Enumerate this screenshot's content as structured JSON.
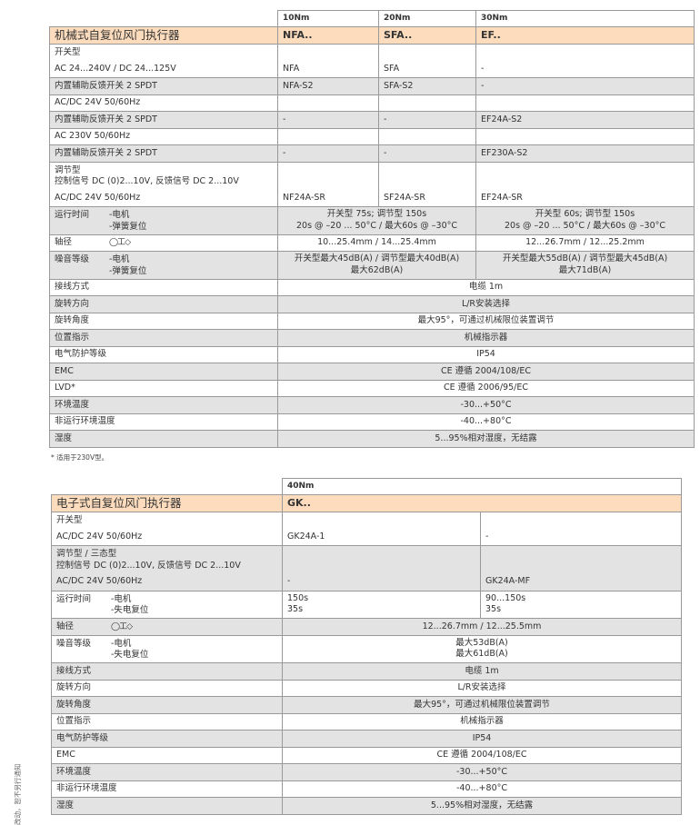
{
  "colors": {
    "header_band": "#fcdcbd",
    "stripe": "#e3e3e3",
    "border": "#999999"
  },
  "icons": {
    "shaft": "shaft-profile-icon (round / flat / square)"
  },
  "table1": {
    "title": "机械式自复位风门执行器",
    "torque": [
      "10Nm",
      "20Nm",
      "30Nm"
    ],
    "series": [
      "NFA..",
      "SFA..",
      "EF.."
    ],
    "rows": [
      {
        "label": "开关型",
        "cells": [
          {
            "t": ""
          },
          {
            "t": ""
          },
          {
            "t": ""
          }
        ],
        "bg": "w",
        "nb": true
      },
      {
        "label": "AC 24...240V / DC 24...125V",
        "cells": [
          {
            "t": "NFA"
          },
          {
            "t": "SFA"
          },
          {
            "t": "-"
          }
        ],
        "bg": "w"
      },
      {
        "label": "内置辅助反馈开关 2 SPDT",
        "cells": [
          {
            "t": "NFA-S2"
          },
          {
            "t": "SFA-S2"
          },
          {
            "t": "-"
          }
        ],
        "bg": "g"
      },
      {
        "label": "AC/DC 24V  50/60Hz",
        "cells": [
          {
            "t": ""
          },
          {
            "t": ""
          },
          {
            "t": ""
          }
        ],
        "bg": "w"
      },
      {
        "label": "内置辅助反馈开关 2 SPDT",
        "cells": [
          {
            "t": "-"
          },
          {
            "t": "-"
          },
          {
            "t": "EF24A-S2"
          }
        ],
        "bg": "g"
      },
      {
        "label": "AC 230V  50/60Hz",
        "cells": [
          {
            "t": ""
          },
          {
            "t": ""
          },
          {
            "t": ""
          }
        ],
        "bg": "w"
      },
      {
        "label": "内置辅助反馈开关 2 SPDT",
        "cells": [
          {
            "t": "-"
          },
          {
            "t": "-"
          },
          {
            "t": "EF230A-S2"
          }
        ],
        "bg": "g"
      },
      {
        "label": "调节型\n控制信号 DC (0)2...10V, 反馈信号 DC 2...10V",
        "cells": [
          {
            "t": ""
          },
          {
            "t": ""
          },
          {
            "t": ""
          }
        ],
        "bg": "w",
        "nb": true,
        "tall": true
      },
      {
        "label": "AC/DC 24V  50/60Hz",
        "cells": [
          {
            "t": "NF24A-SR"
          },
          {
            "t": "SF24A-SR"
          },
          {
            "t": "EF24A-SR"
          }
        ],
        "bg": "w"
      },
      {
        "label": "运行时间",
        "sub": "-电机\n-弹簧复位",
        "cells": [
          {
            "t": "开关型 75s; 调节型 150s\n20s @ –20 ... 50°C / 最大60s @ –30°C",
            "span": 2,
            "c": true
          },
          {
            "t": "开关型  60s; 调节型 150s\n20s @ –20 ... 50°C / 最大60s @ –30°C",
            "c": true
          }
        ],
        "bg": "g"
      },
      {
        "label": "轴径",
        "shaft": true,
        "cells": [
          {
            "t": "10...25.4mm / 14...25.4mm",
            "span": 2,
            "c": true
          },
          {
            "t": "12...26.7mm / 12...25.2mm",
            "c": true
          }
        ],
        "bg": "w"
      },
      {
        "label": "噪音等级",
        "sub": "-电机\n-弹簧复位",
        "cells": [
          {
            "t": "开关型最大45dB(A) / 调节型最大40dB(A)\n最大62dB(A)",
            "span": 2,
            "c": true
          },
          {
            "t": "开关型最大55dB(A) / 调节型最大45dB(A)\n最大71dB(A)",
            "c": true
          }
        ],
        "bg": "g"
      },
      {
        "label": "接线方式",
        "cells": [
          {
            "t": "电缆 1m",
            "span": 3,
            "c": true
          }
        ],
        "bg": "w"
      },
      {
        "label": "旋转方向",
        "cells": [
          {
            "t": "L/R安装选择",
            "span": 3,
            "c": true
          }
        ],
        "bg": "g"
      },
      {
        "label": "旋转角度",
        "cells": [
          {
            "t": "最大95°，可通过机械限位装置调节",
            "span": 3,
            "c": true
          }
        ],
        "bg": "w"
      },
      {
        "label": "位置指示",
        "cells": [
          {
            "t": "机械指示器",
            "span": 3,
            "c": true
          }
        ],
        "bg": "g"
      },
      {
        "label": "电气防护等级",
        "cells": [
          {
            "t": "IP54",
            "span": 3,
            "c": true
          }
        ],
        "bg": "w"
      },
      {
        "label": "EMC",
        "cells": [
          {
            "t": "CE 遵循 2004/108/EC",
            "span": 3,
            "c": true
          }
        ],
        "bg": "g"
      },
      {
        "label": "LVD*",
        "cells": [
          {
            "t": "CE 遵循 2006/95/EC",
            "span": 3,
            "c": true
          }
        ],
        "bg": "w"
      },
      {
        "label": "环境温度",
        "cells": [
          {
            "t": "-30...+50°C",
            "span": 3,
            "c": true
          }
        ],
        "bg": "g"
      },
      {
        "label": "非运行环境温度",
        "cells": [
          {
            "t": "-40...+80°C",
            "span": 3,
            "c": true
          }
        ],
        "bg": "w"
      },
      {
        "label": "湿度",
        "cells": [
          {
            "t": "5...95%相对湿度，无结露",
            "span": 3,
            "c": true
          }
        ],
        "bg": "g"
      }
    ],
    "footnote": "* 适用于230V型。"
  },
  "table2": {
    "title": "电子式自复位风门执行器",
    "torque": [
      "40Nm"
    ],
    "series": [
      "GK.."
    ],
    "rows": [
      {
        "label": "开关型",
        "cells": [
          {
            "t": ""
          },
          {
            "t": ""
          }
        ],
        "bg": "w",
        "nb": true
      },
      {
        "label": "AC/DC 24V 50/60Hz",
        "cells": [
          {
            "t": "GK24A-1"
          },
          {
            "t": "-"
          }
        ],
        "bg": "w"
      },
      {
        "label": "调节型 / 三态型\n控制信号 DC (0)2...10V, 反馈信号 DC 2...10V",
        "cells": [
          {
            "t": ""
          },
          {
            "t": ""
          }
        ],
        "bg": "g",
        "nb": true,
        "tall": true
      },
      {
        "label": "AC/DC 24V  50/60Hz",
        "cells": [
          {
            "t": "-"
          },
          {
            "t": "GK24A-MF"
          }
        ],
        "bg": "g"
      },
      {
        "label": "运行时间",
        "sub": "-电机\n-失电复位",
        "cells": [
          {
            "t": "150s\n35s"
          },
          {
            "t": "90...150s\n35s"
          }
        ],
        "bg": "w"
      },
      {
        "label": "轴径",
        "shaft": true,
        "cells": [
          {
            "t": "12...26.7mm / 12...25.5mm",
            "span": 2,
            "c": true
          }
        ],
        "bg": "g"
      },
      {
        "label": "噪音等级",
        "sub": "-电机\n-失电复位",
        "cells": [
          {
            "t": "最大53dB(A)\n最大61dB(A)",
            "span": 2,
            "c": true
          }
        ],
        "bg": "w"
      },
      {
        "label": "接线方式",
        "cells": [
          {
            "t": "电缆 1m",
            "span": 2,
            "c": true
          }
        ],
        "bg": "g"
      },
      {
        "label": "旋转方向",
        "cells": [
          {
            "t": "L/R安装选择",
            "span": 2,
            "c": true
          }
        ],
        "bg": "w"
      },
      {
        "label": "旋转角度",
        "cells": [
          {
            "t": "最大95°，可通过机械限位装置调节",
            "span": 2,
            "c": true
          }
        ],
        "bg": "g"
      },
      {
        "label": "位置指示",
        "cells": [
          {
            "t": "机械指示器",
            "span": 2,
            "c": true
          }
        ],
        "bg": "w"
      },
      {
        "label": "电气防护等级",
        "cells": [
          {
            "t": "IP54",
            "span": 2,
            "c": true
          }
        ],
        "bg": "g"
      },
      {
        "label": "EMC",
        "cells": [
          {
            "t": "CE 遵循 2004/108/EC",
            "span": 2,
            "c": true
          }
        ],
        "bg": "w"
      },
      {
        "label": "环境温度",
        "cells": [
          {
            "t": "-30...+50°C",
            "span": 2,
            "c": true
          }
        ],
        "bg": "g"
      },
      {
        "label": "非运行环境温度",
        "cells": [
          {
            "t": "-40...+80°C",
            "span": 2,
            "c": true
          }
        ],
        "bg": "w"
      },
      {
        "label": "湿度",
        "cells": [
          {
            "t": "5...95%相对湿度，无结露",
            "span": 2,
            "c": true
          }
        ],
        "bg": "g"
      }
    ]
  },
  "side_note": "改动，恕不另行通知"
}
